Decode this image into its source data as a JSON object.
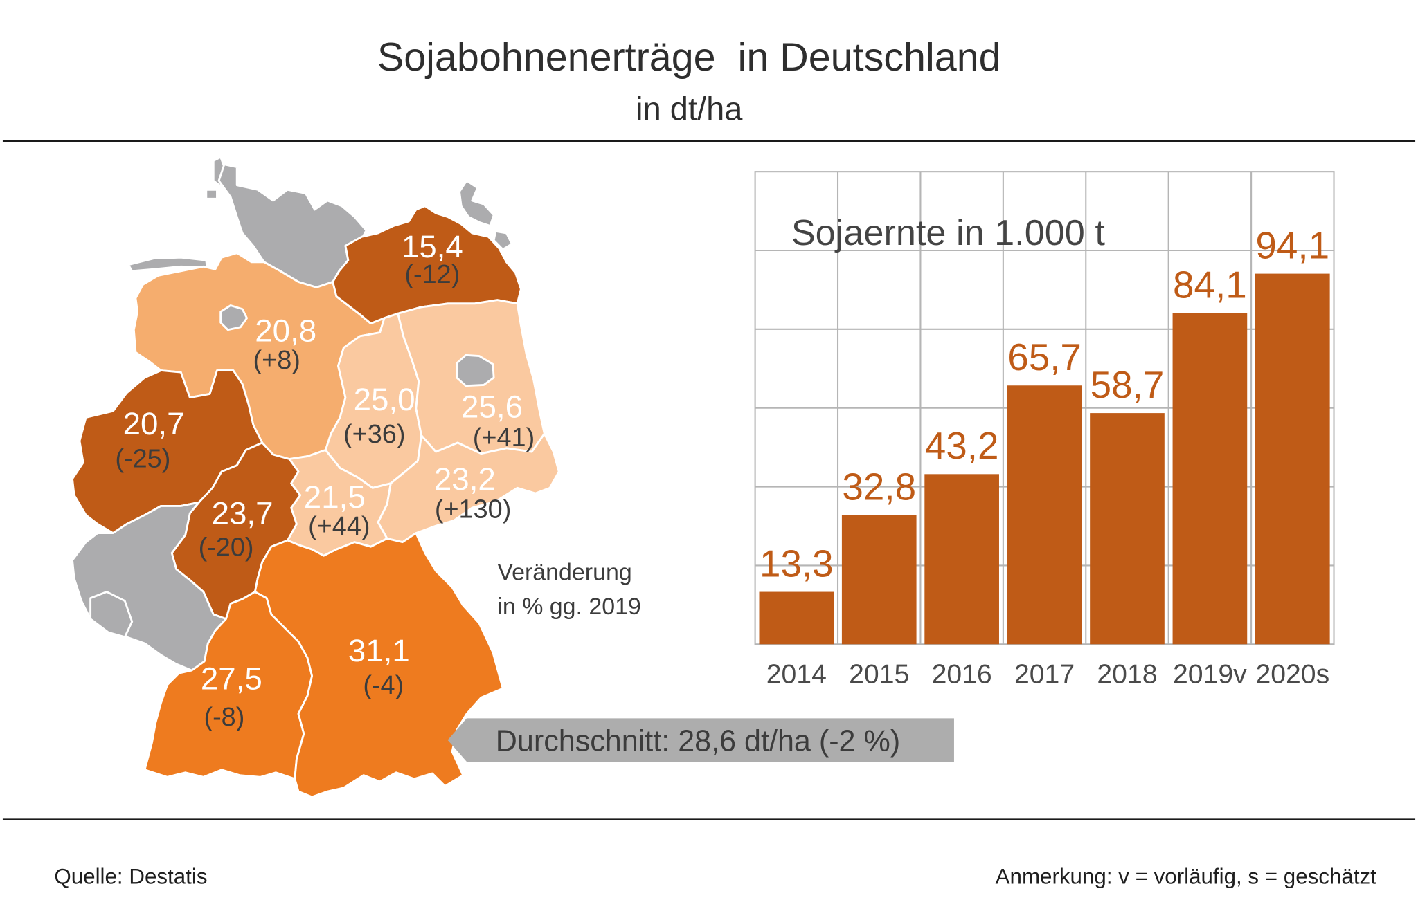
{
  "title": "Sojabohnenerträge  in Deutschland",
  "subtitle": "in dt/ha",
  "map": {
    "no_data_color": "#acacae",
    "regions": [
      {
        "value": "15,4",
        "change": "(-12)",
        "color": "#bf5b17"
      },
      {
        "value": "20,8",
        "change": "(+8)",
        "color": "#f5ad6e"
      },
      {
        "value": "20,7",
        "change": "(-25)",
        "color": "#bf5b17"
      },
      {
        "value": "25,0",
        "change": "(+36)",
        "color": "#fac9a0"
      },
      {
        "value": "25,6",
        "change": "(+41)",
        "color": "#fac9a0"
      },
      {
        "value": "23,2",
        "change": "(+130)",
        "color": "#fac9a0"
      },
      {
        "value": "21,5",
        "change": "(+44)",
        "color": "#fac9a0"
      },
      {
        "value": "23,7",
        "change": "(-20)",
        "color": "#bf5b17"
      },
      {
        "value": "31,1",
        "change": "(-4)",
        "color": "#ee7b1f"
      },
      {
        "value": "27,5",
        "change": "(-8)",
        "color": "#ee7b1f"
      }
    ],
    "change_note": [
      "Veränderung",
      "in % gg. 2019"
    ]
  },
  "average": {
    "text": "Durchschnitt: 28,6 dt/ha (-2 %)",
    "color": "#adadad"
  },
  "chart_data": {
    "type": "bar",
    "title": "Sojaernte in 1.000 t",
    "categories": [
      "2014",
      "2015",
      "2016",
      "2017",
      "2018",
      "2019v",
      "2020s"
    ],
    "values": [
      13.3,
      32.8,
      43.2,
      65.7,
      58.7,
      84.1,
      94.1
    ],
    "data_labels": [
      "13,3",
      "32,8",
      "43,2",
      "65,7",
      "58,7",
      "84,1",
      "94,1"
    ],
    "xlabel": "",
    "ylabel": "",
    "ylim": [
      0,
      120
    ],
    "grid": true,
    "legend": "none",
    "bar_color": "#bf5b17"
  },
  "footer": {
    "source": "Quelle: Destatis",
    "note": "Anmerkung: v = vorläufig, s = geschätzt"
  }
}
